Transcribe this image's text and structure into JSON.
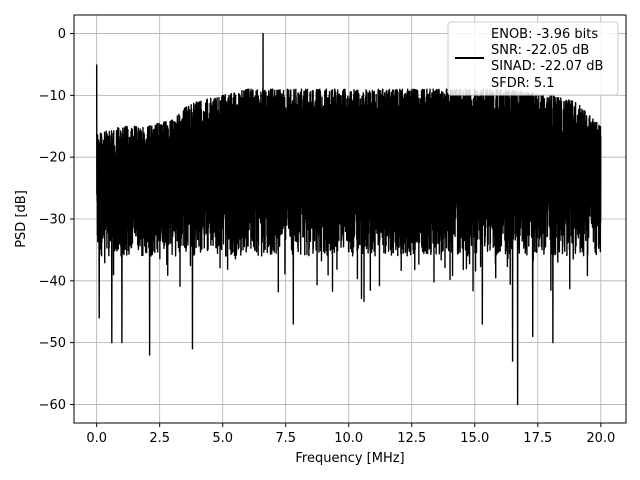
{
  "chart_data": {
    "type": "line",
    "title": "",
    "xlabel": "Frequency [MHz]",
    "ylabel": "PSD [dB]",
    "xlim": [
      -0.9,
      21.0
    ],
    "ylim": [
      -63,
      3
    ],
    "xticks": [
      0.0,
      2.5,
      5.0,
      7.5,
      10.0,
      12.5,
      15.0,
      17.5,
      20.0
    ],
    "xtick_labels": [
      "0.0",
      "2.5",
      "5.0",
      "7.5",
      "10.0",
      "12.5",
      "15.0",
      "17.5",
      "20.0"
    ],
    "yticks": [
      0,
      -10,
      -20,
      -30,
      -40,
      -50,
      -60
    ],
    "ytick_labels": [
      "0",
      "−10",
      "−20",
      "−30",
      "−40",
      "−50",
      "−60"
    ],
    "grid": true,
    "legend_position": "upper-right",
    "series_color": "#000000",
    "legend": {
      "entries": [
        "ENOB: -3.96 bits",
        "SNR: -22.05 dB",
        "SINAD: -22.07 dB",
        "SFDR: 5.1"
      ]
    },
    "series": [
      {
        "description": "noise-like power spectral density trace, approximate envelope",
        "x_range": [
          0.0,
          20.0
        ],
        "upper_envelope": {
          "x": [
            0.0,
            0.2,
            1.0,
            2.0,
            3.0,
            3.5,
            4.0,
            5.0,
            6.0,
            7.0,
            8.0,
            10.0,
            12.0,
            14.0,
            16.0,
            18.0,
            19.0,
            20.0
          ],
          "y": [
            -16,
            -16,
            -15,
            -15,
            -14,
            -12,
            -11,
            -10,
            -9,
            -9,
            -9,
            -9,
            -9,
            -9,
            -9,
            -10,
            -11,
            -15
          ]
        },
        "typical_low": -32,
        "highlights": [
          {
            "x": 0.0,
            "y": -5
          },
          {
            "x": 6.6,
            "y": 0
          },
          {
            "x": 7.8,
            "y": -47
          },
          {
            "x": 2.1,
            "y": -52
          },
          {
            "x": 16.7,
            "y": -60
          },
          {
            "x": 16.5,
            "y": -53
          },
          {
            "x": 0.6,
            "y": -50
          },
          {
            "x": 18.1,
            "y": -50
          },
          {
            "x": 1.0,
            "y": -50
          },
          {
            "x": 3.8,
            "y": -51
          },
          {
            "x": 0.1,
            "y": -46
          },
          {
            "x": 15.3,
            "y": -47
          },
          {
            "x": 17.3,
            "y": -49
          }
        ]
      }
    ]
  }
}
